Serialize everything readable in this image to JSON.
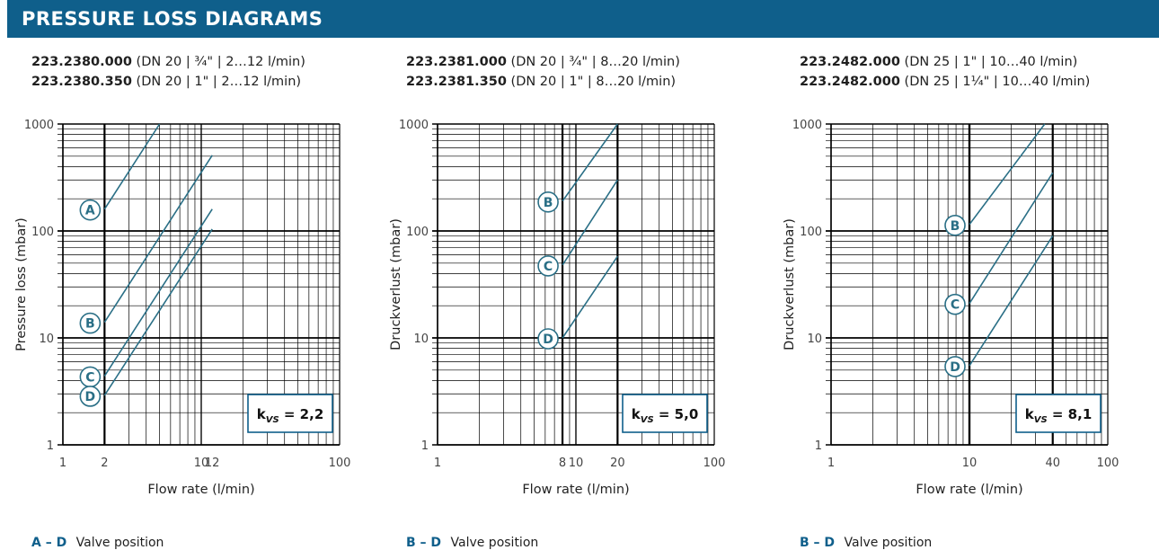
{
  "header": {
    "title": "PRESSURE LOSS DIAGRAMS"
  },
  "colors": {
    "header_bg": "#0f5f8b",
    "curve": "#2a6f86",
    "label_circle": "#2a6f86",
    "kvs_border": "#0f5f8b",
    "grid": "#000000"
  },
  "panels": [
    {
      "models": [
        {
          "number": "223.2380.000",
          "spec": "(DN 20 | ¾\" | 2…12 l/min)"
        },
        {
          "number": "223.2380.350",
          "spec": "(DN 20 | 1\" | 2…12 l/min)"
        }
      ],
      "legend": {
        "key": "A – D",
        "text": "Valve position"
      },
      "kvs": {
        "prefix": "k",
        "sub": "VS",
        "value": "= 2,2"
      }
    },
    {
      "models": [
        {
          "number": "223.2381.000",
          "spec": "(DN 20 | ¾\" | 8…20 l/min)"
        },
        {
          "number": "223.2381.350",
          "spec": "(DN 20 | 1\" | 8…20 l/min)"
        }
      ],
      "legend": {
        "key": "B – D",
        "text": "Valve position"
      },
      "kvs": {
        "prefix": "k",
        "sub": "VS",
        "value": "= 5,0"
      }
    },
    {
      "models": [
        {
          "number": "223.2482.000",
          "spec": "(DN 25 | 1\" | 10…40 l/min)"
        },
        {
          "number": "223.2482.000",
          "spec": "(DN 25 | 1¼\" | 10…40 l/min)"
        }
      ],
      "legend": {
        "key": "B – D",
        "text": "Valve position"
      },
      "kvs": {
        "prefix": "k",
        "sub": "VS",
        "value": "= 8,1"
      }
    }
  ],
  "chart_data": [
    {
      "type": "line",
      "xscale": "log",
      "yscale": "log",
      "xlim": [
        1,
        100
      ],
      "ylim": [
        1,
        1000
      ],
      "xticks": [
        1,
        2,
        10,
        12,
        100
      ],
      "yticks": [
        1,
        10,
        100,
        1000
      ],
      "emphasized_x": [
        2,
        12
      ],
      "xlabel": "Flow rate (l/min)",
      "ylabel": "Pressure loss (mbar)",
      "series": [
        {
          "name": "A",
          "x": [
            2,
            5
          ],
          "y": [
            160,
            1000
          ]
        },
        {
          "name": "B",
          "x": [
            2,
            12
          ],
          "y": [
            14,
            510
          ]
        },
        {
          "name": "C",
          "x": [
            2,
            12
          ],
          "y": [
            4.4,
            160
          ]
        },
        {
          "name": "D",
          "x": [
            2,
            12
          ],
          "y": [
            2.9,
            104
          ]
        }
      ]
    },
    {
      "type": "line",
      "xscale": "log",
      "yscale": "log",
      "xlim": [
        1,
        100
      ],
      "ylim": [
        1,
        1000
      ],
      "xticks": [
        1,
        8,
        10,
        20,
        100
      ],
      "yticks": [
        1,
        10,
        100,
        1000
      ],
      "emphasized_x": [
        8,
        20
      ],
      "xlabel": "Flow rate (l/min)",
      "ylabel": "Druckverlust (mbar)",
      "series": [
        {
          "name": "B",
          "x": [
            8,
            20
          ],
          "y": [
            190,
            1000
          ]
        },
        {
          "name": "C",
          "x": [
            8,
            20
          ],
          "y": [
            48,
            300
          ]
        },
        {
          "name": "D",
          "x": [
            8,
            20
          ],
          "y": [
            10,
            58
          ]
        }
      ]
    },
    {
      "type": "line",
      "xscale": "log",
      "yscale": "log",
      "xlim": [
        1,
        100
      ],
      "ylim": [
        1,
        1000
      ],
      "xticks": [
        1,
        10,
        40,
        100
      ],
      "yticks": [
        1,
        10,
        100,
        1000
      ],
      "emphasized_x": [
        10,
        40
      ],
      "xlabel": "Flow rate (l/min)",
      "ylabel": "Druckverlust (mbar)",
      "series": [
        {
          "name": "B",
          "x": [
            10,
            35
          ],
          "y": [
            115,
            1000
          ]
        },
        {
          "name": "C",
          "x": [
            10,
            40
          ],
          "y": [
            21,
            350
          ]
        },
        {
          "name": "D",
          "x": [
            10,
            40
          ],
          "y": [
            5.5,
            90
          ]
        }
      ]
    }
  ]
}
